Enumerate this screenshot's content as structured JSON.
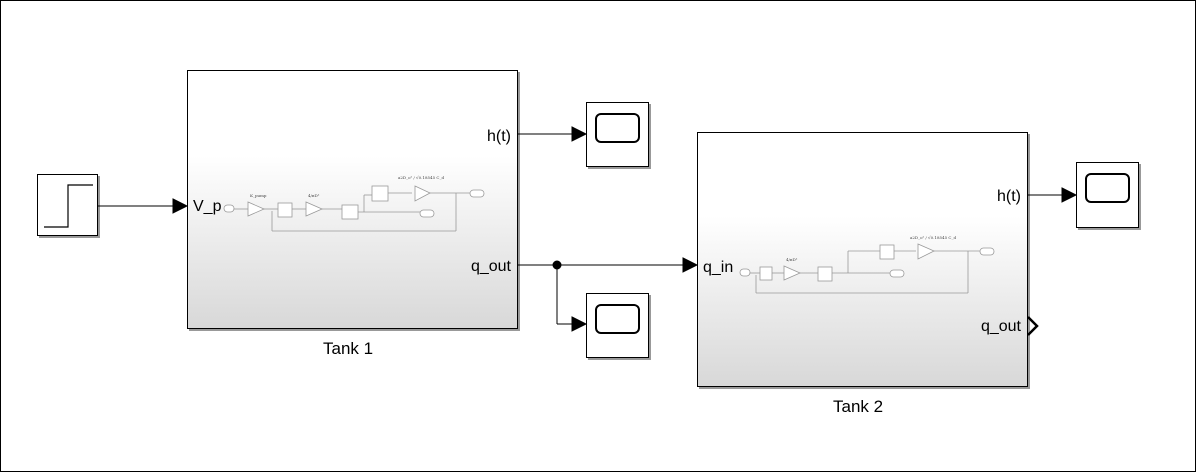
{
  "diagram": {
    "tank1": {
      "label": "Tank 1",
      "input_port": "V_p",
      "output_h": "h(t)",
      "output_q": "q_out",
      "preview_k_label": "K_pump",
      "preview_gain_label": "4/πD²",
      "preview_eq_label": "a2D_o² / √0.18545 C_d"
    },
    "tank2": {
      "label": "Tank 2",
      "input_port": "q_in",
      "output_h": "h(t)",
      "output_q": "q_out",
      "preview_gain_label": "4/πD²",
      "preview_eq_label": "a2D_o² / √0.18545 C_d"
    },
    "blocks": {
      "step": "step-source",
      "scopes": [
        "scope-tank1-h",
        "scope-tank1-q",
        "scope-tank2-h"
      ]
    }
  }
}
